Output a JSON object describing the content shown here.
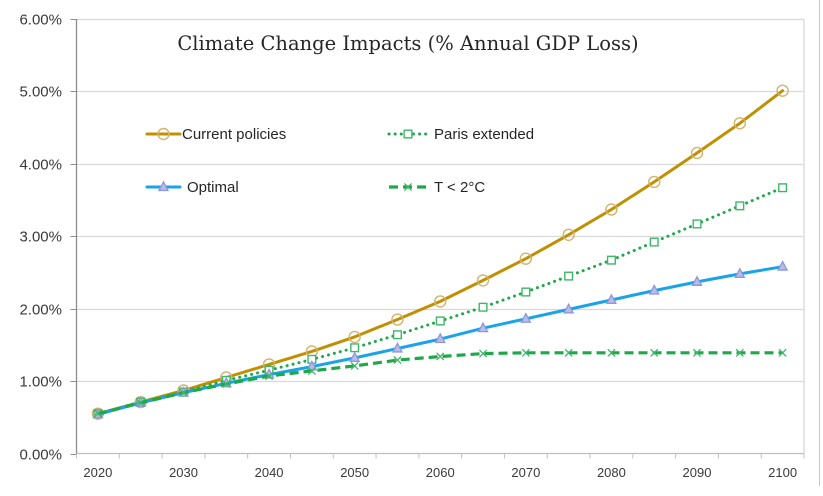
{
  "chart_data": {
    "type": "line",
    "title": "Climate Change Impacts (% Annual GDP Loss)",
    "xlabel": "",
    "ylabel": "",
    "x": [
      2020,
      2025,
      2030,
      2035,
      2040,
      2045,
      2050,
      2055,
      2060,
      2065,
      2070,
      2075,
      2080,
      2085,
      2090,
      2095,
      2100
    ],
    "x_tick_labels": [
      "2020",
      "2030",
      "2040",
      "2050",
      "2060",
      "2070",
      "2080",
      "2090",
      "2100"
    ],
    "y_tick_labels": [
      "0.00%",
      "1.00%",
      "2.00%",
      "3.00%",
      "4.00%",
      "5.00%",
      "6.00%"
    ],
    "y_ticks": [
      0,
      1,
      2,
      3,
      4,
      5,
      6
    ],
    "ylim": [
      0,
      6
    ],
    "y_unit": "%",
    "grid": "horizontal",
    "legend_position": "top-left (inside plot, 2 columns)",
    "series": [
      {
        "name": "Current policies",
        "color": "#C09000",
        "marker": "circle",
        "marker_color": "#D4B270",
        "line_style": "solid",
        "values": [
          0.55,
          0.71,
          0.87,
          1.05,
          1.23,
          1.41,
          1.61,
          1.85,
          2.1,
          2.39,
          2.69,
          3.02,
          3.37,
          3.75,
          4.15,
          4.56,
          5.01
        ]
      },
      {
        "name": "Paris extended",
        "color": "#1FA84A",
        "marker": "square",
        "marker_color": "#3FB76A",
        "line_style": "dotted",
        "values": [
          0.55,
          0.71,
          0.85,
          1.01,
          1.15,
          1.3,
          1.46,
          1.64,
          1.83,
          2.02,
          2.23,
          2.45,
          2.67,
          2.92,
          3.17,
          3.42,
          3.67
        ]
      },
      {
        "name": "Optimal",
        "color": "#1AA3E8",
        "marker": "triangle",
        "marker_color": "#8E97D8",
        "line_style": "solid",
        "values": [
          0.54,
          0.7,
          0.84,
          0.97,
          1.09,
          1.2,
          1.32,
          1.45,
          1.58,
          1.73,
          1.86,
          1.99,
          2.12,
          2.25,
          2.37,
          2.48,
          2.58
        ]
      },
      {
        "name": "T < 2°C",
        "color": "#1FA84A",
        "marker": "x",
        "marker_color": "#3FB76A",
        "line_style": "dashed",
        "values": [
          0.55,
          0.7,
          0.84,
          0.96,
          1.07,
          1.14,
          1.21,
          1.29,
          1.34,
          1.38,
          1.39,
          1.39,
          1.39,
          1.39,
          1.39,
          1.39,
          1.39
        ]
      }
    ]
  }
}
